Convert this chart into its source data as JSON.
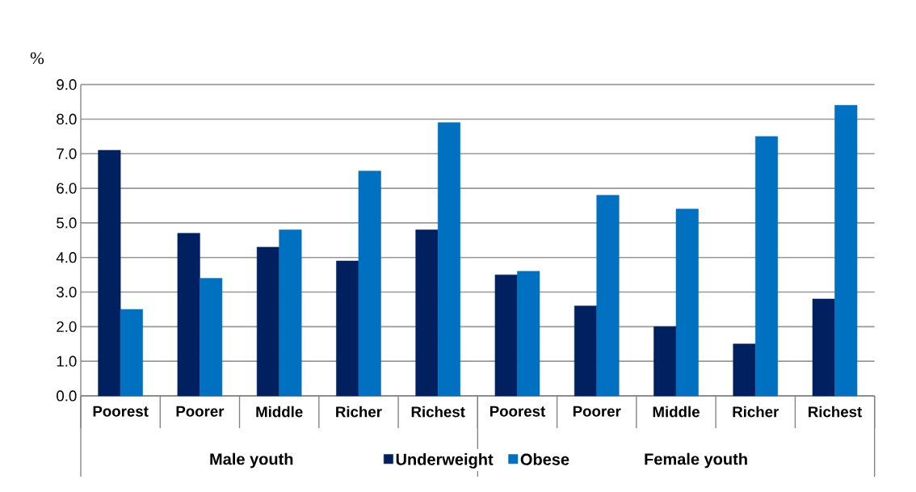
{
  "chart_data": {
    "type": "bar",
    "ylabel": "%",
    "categories": [
      "Poorest",
      "Poorer",
      "Middle",
      "Richer",
      "Richest",
      "Poorest",
      "Poorer",
      "Middle",
      "Richer",
      "Richest"
    ],
    "series": [
      {
        "name": "Underweight",
        "color": "#002060",
        "values": [
          7.1,
          4.7,
          4.3,
          3.9,
          4.8,
          3.5,
          2.6,
          2.0,
          1.5,
          2.8
        ]
      },
      {
        "name": "Obese",
        "color": "#0070c0",
        "values": [
          2.5,
          3.4,
          4.8,
          6.5,
          7.9,
          3.6,
          5.8,
          5.4,
          7.5,
          8.4
        ]
      }
    ],
    "ylim": [
      0,
      9
    ],
    "yticks": [
      {
        "value": 0,
        "label": "0.0"
      },
      {
        "value": 1,
        "label": "1.0"
      },
      {
        "value": 2,
        "label": "2.0"
      },
      {
        "value": 3,
        "label": "3.0"
      },
      {
        "value": 4,
        "label": "4.0"
      },
      {
        "value": 5,
        "label": "5.0"
      },
      {
        "value": 6,
        "label": "6.0"
      },
      {
        "value": 7,
        "label": "7.0"
      },
      {
        "value": 8,
        "label": "8.0"
      },
      {
        "value": 9,
        "label": "9.0"
      }
    ],
    "grid": "y",
    "legend": "bottom",
    "annotations": [
      "Male youth",
      "Female youth"
    ]
  }
}
